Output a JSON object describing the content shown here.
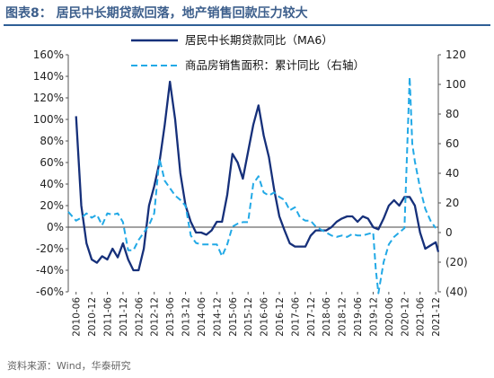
{
  "header": {
    "title": "图表8： 居民中长期贷款回落，地产销售回款压力较大"
  },
  "footer": {
    "source": "资料来源：Wind，华泰研究"
  },
  "colors": {
    "series_loans": "#16307a",
    "series_sales": "#22a9e6",
    "title": "#3d5f8c"
  },
  "chart_data": {
    "type": "line",
    "title": "",
    "left_axis": {
      "ylim": [
        -60,
        160
      ],
      "ticks": [
        "160%",
        "140%",
        "120%",
        "100%",
        "80%",
        "60%",
        "40%",
        "20%",
        "0%",
        "-20%",
        "-40%",
        "-60%"
      ]
    },
    "right_axis": {
      "ylim": [
        -40,
        120
      ],
      "ticks": [
        "120",
        "100",
        "80",
        "60",
        "40",
        "20",
        "0",
        "(20)",
        "(40)"
      ]
    },
    "x_ticks": [
      "2010-06",
      "2010-12",
      "2011-06",
      "2011-12",
      "2012-06",
      "2012-12",
      "2013-06",
      "2013-12",
      "2014-06",
      "2014-12",
      "2015-06",
      "2015-12",
      "2016-06",
      "2016-12",
      "2017-06",
      "2017-12",
      "2018-06",
      "2018-12",
      "2019-06",
      "2019-12",
      "2020-06",
      "2020-12",
      "2021-06",
      "2021-12"
    ],
    "legend_position": "top-center",
    "series": [
      {
        "name": "居民中长期贷款同比（MA6）",
        "axis": "left",
        "style": "solid",
        "x": [
          "2010-06",
          "2010-08",
          "2010-10",
          "2010-12",
          "2011-02",
          "2011-04",
          "2011-06",
          "2011-08",
          "2011-10",
          "2011-12",
          "2012-02",
          "2012-04",
          "2012-06",
          "2012-08",
          "2012-10",
          "2012-12",
          "2013-02",
          "2013-04",
          "2013-06",
          "2013-08",
          "2013-10",
          "2013-12",
          "2014-02",
          "2014-04",
          "2014-06",
          "2014-08",
          "2014-10",
          "2014-12",
          "2015-02",
          "2015-04",
          "2015-06",
          "2015-08",
          "2015-10",
          "2015-12",
          "2016-02",
          "2016-04",
          "2016-06",
          "2016-08",
          "2016-10",
          "2016-12",
          "2017-02",
          "2017-04",
          "2017-06",
          "2017-08",
          "2017-10",
          "2017-12",
          "2018-02",
          "2018-04",
          "2018-06",
          "2018-08",
          "2018-10",
          "2018-12",
          "2019-02",
          "2019-04",
          "2019-06",
          "2019-08",
          "2019-10",
          "2019-12",
          "2020-02",
          "2020-04",
          "2020-06",
          "2020-08",
          "2020-10",
          "2020-12",
          "2021-02",
          "2021-04",
          "2021-06",
          "2021-08",
          "2021-10",
          "2021-12",
          "2022-01"
        ],
        "values": [
          103,
          20,
          -15,
          -30,
          -33,
          -27,
          -30,
          -20,
          -28,
          -15,
          -30,
          -40,
          -40,
          -20,
          20,
          38,
          60,
          95,
          135,
          100,
          50,
          20,
          5,
          -5,
          -5,
          -7,
          -3,
          5,
          5,
          30,
          68,
          60,
          45,
          70,
          95,
          113,
          85,
          65,
          35,
          10,
          -3,
          -15,
          -18,
          -18,
          -18,
          -8,
          -3,
          -3,
          -3,
          0,
          5,
          8,
          10,
          10,
          5,
          10,
          8,
          0,
          -2,
          8,
          20,
          25,
          20,
          28,
          28,
          20,
          -5,
          -20,
          -17,
          -14,
          -23
        ]
      },
      {
        "name": "商品房销售面积：累计同比（右轴）",
        "axis": "right",
        "style": "dashed",
        "x": [
          "2010-03",
          "2010-06",
          "2010-08",
          "2010-10",
          "2010-12",
          "2011-02",
          "2011-04",
          "2011-06",
          "2011-08",
          "2011-10",
          "2011-12",
          "2012-02",
          "2012-04",
          "2012-06",
          "2012-08",
          "2012-10",
          "2012-12",
          "2013-02",
          "2013-04",
          "2013-06",
          "2013-08",
          "2013-10",
          "2013-12",
          "2014-02",
          "2014-04",
          "2014-06",
          "2014-08",
          "2014-10",
          "2014-12",
          "2015-02",
          "2015-04",
          "2015-06",
          "2015-08",
          "2015-10",
          "2015-12",
          "2016-02",
          "2016-04",
          "2016-06",
          "2016-08",
          "2016-10",
          "2016-12",
          "2017-02",
          "2017-04",
          "2017-06",
          "2017-08",
          "2017-10",
          "2017-12",
          "2018-02",
          "2018-04",
          "2018-06",
          "2018-08",
          "2018-10",
          "2018-12",
          "2019-02",
          "2019-04",
          "2019-06",
          "2019-08",
          "2019-10",
          "2019-12",
          "2020-01",
          "2020-02",
          "2020-04",
          "2020-06",
          "2020-08",
          "2020-10",
          "2020-12",
          "2021-02",
          "2021-03",
          "2021-04",
          "2021-06",
          "2021-08",
          "2021-10",
          "2021-12"
        ],
        "values": [
          14,
          8,
          10,
          13,
          10,
          12,
          5,
          13,
          12,
          13,
          7,
          -12,
          -12,
          -5,
          0,
          5,
          13,
          50,
          35,
          30,
          25,
          22,
          18,
          -2,
          -7,
          -8,
          -8,
          -8,
          -8,
          -16,
          -8,
          4,
          6,
          7,
          7,
          33,
          38,
          27,
          25,
          27,
          24,
          22,
          15,
          17,
          10,
          8,
          8,
          4,
          2,
          0,
          -2,
          -3,
          -2,
          -3,
          -1,
          -2,
          -2,
          -1,
          0,
          -25,
          -41,
          -20,
          -8,
          -3,
          0,
          3,
          105,
          60,
          48,
          30,
          16,
          8,
          3
        ]
      }
    ]
  }
}
